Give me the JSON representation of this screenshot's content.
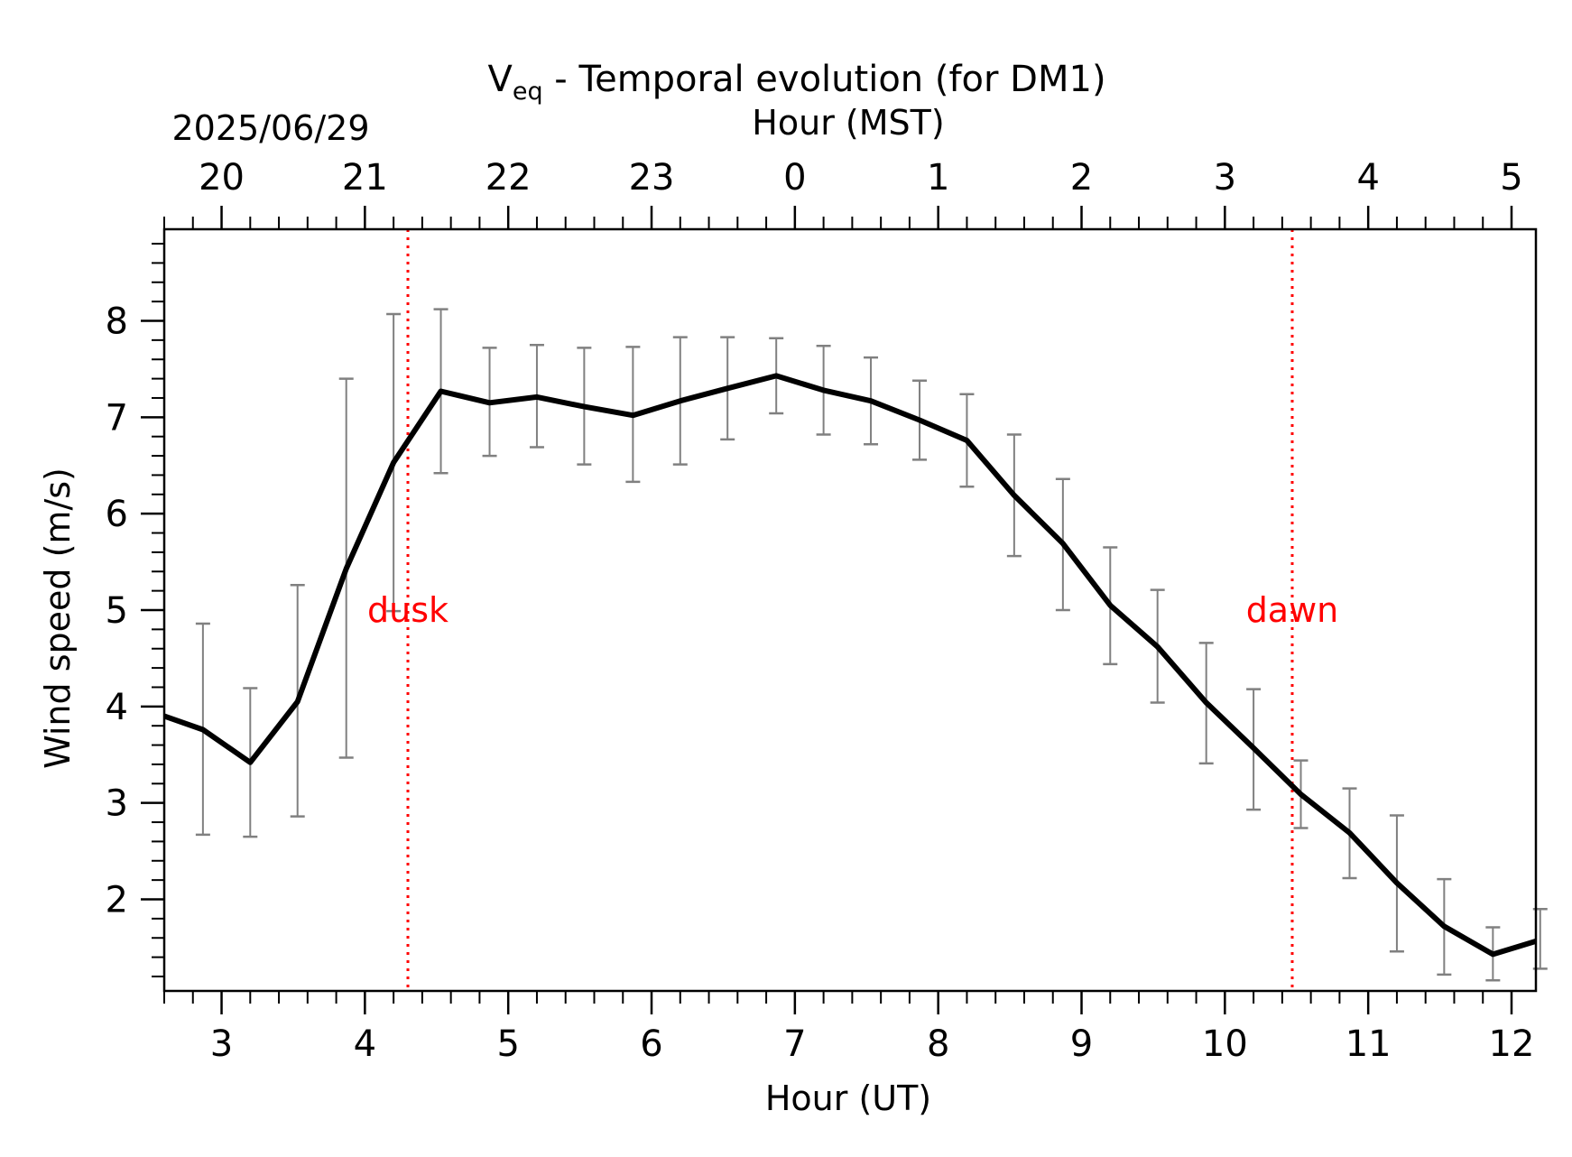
{
  "title": {
    "main": "V",
    "sub": "eq",
    "rest": " - Temporal evolution (for DM1)"
  },
  "top_axis": {
    "label": "Hour (MST)",
    "date": "2025/06/29",
    "ticks": [
      {
        "x": 3,
        "label": "20"
      },
      {
        "x": 4,
        "label": "21"
      },
      {
        "x": 5,
        "label": "22"
      },
      {
        "x": 6,
        "label": "23"
      },
      {
        "x": 7,
        "label": "0"
      },
      {
        "x": 8,
        "label": "1"
      },
      {
        "x": 9,
        "label": "2"
      },
      {
        "x": 10,
        "label": "3"
      },
      {
        "x": 11,
        "label": "4"
      },
      {
        "x": 12,
        "label": "5"
      }
    ]
  },
  "chart_data": {
    "type": "line",
    "xlabel": "Hour (UT)",
    "ylabel": "Wind speed (m/s)",
    "xlim": [
      2.6,
      12.17
    ],
    "ylim": [
      1.05,
      8.95
    ],
    "xticks": [
      3,
      4,
      5,
      6,
      7,
      8,
      9,
      10,
      11,
      12
    ],
    "yticks": [
      2,
      3,
      4,
      5,
      6,
      7,
      8
    ],
    "grid": false,
    "line_color": "#000000",
    "errorbar_color": "#808080",
    "marker_color": "#ff0000",
    "series": [
      {
        "x": [
          2.6,
          2.87,
          3.2,
          3.53,
          3.87,
          4.2,
          4.53,
          4.87,
          5.2,
          5.53,
          5.87,
          6.2,
          6.53,
          6.87,
          7.2,
          7.53,
          7.87,
          8.2,
          8.53,
          8.87,
          9.2,
          9.53,
          9.87,
          10.2,
          10.53,
          10.87,
          11.2,
          11.53,
          11.87,
          12.2
        ],
        "y": [
          3.9,
          3.76,
          3.42,
          4.05,
          5.43,
          6.53,
          7.27,
          7.15,
          7.21,
          7.11,
          7.02,
          7.17,
          7.3,
          7.43,
          7.28,
          7.17,
          6.97,
          6.76,
          6.19,
          5.69,
          5.05,
          4.62,
          4.04,
          3.57,
          3.09,
          2.69,
          2.17,
          1.72,
          1.43,
          1.58
        ],
        "err_low": [
          null,
          2.67,
          2.65,
          2.86,
          3.47,
          4.99,
          6.42,
          6.6,
          6.69,
          6.51,
          6.33,
          6.51,
          6.77,
          7.04,
          6.82,
          6.72,
          6.56,
          6.28,
          5.56,
          5.0,
          4.44,
          4.04,
          3.41,
          2.93,
          2.74,
          2.22,
          1.46,
          1.22,
          1.16,
          1.28
        ],
        "err_high": [
          null,
          4.86,
          4.19,
          5.26,
          7.4,
          8.07,
          8.12,
          7.72,
          7.75,
          7.72,
          7.73,
          7.83,
          7.83,
          7.82,
          7.74,
          7.62,
          7.38,
          7.24,
          6.82,
          6.36,
          5.65,
          5.21,
          4.66,
          4.18,
          3.44,
          3.15,
          2.87,
          2.21,
          1.71,
          1.9
        ]
      }
    ],
    "markers": [
      {
        "x": 4.3,
        "label": "dusk",
        "label_y": 5.0
      },
      {
        "x": 10.47,
        "label": "dawn",
        "label_y": 5.0
      }
    ]
  }
}
